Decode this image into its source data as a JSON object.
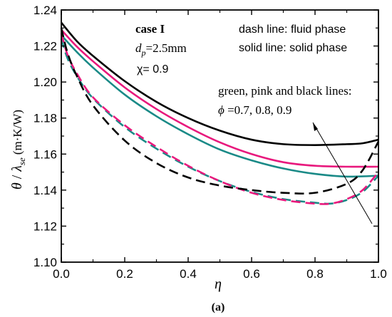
{
  "chart_data": {
    "type": "line",
    "ylabel_theta": "θ",
    "ylabel_slash": " / ",
    "ylabel_lambda": "λ",
    "ylabel_sub": "se",
    "ylabel_unit": "(m·K/W)",
    "xlabel": "η",
    "caption": "(a)",
    "xlim": [
      0.0,
      1.0
    ],
    "ylim": [
      1.1,
      1.24
    ],
    "x_ticks": [
      "0.0",
      "0.2",
      "0.4",
      "0.6",
      "0.8",
      "1.0"
    ],
    "x_tick_values": [
      0.0,
      0.2,
      0.4,
      0.6,
      0.8,
      1.0
    ],
    "y_ticks": [
      "1.10",
      "1.12",
      "1.14",
      "1.16",
      "1.18",
      "1.20",
      "1.22",
      "1.24"
    ],
    "y_tick_values": [
      1.1,
      1.12,
      1.14,
      1.16,
      1.18,
      1.2,
      1.22,
      1.24
    ],
    "annotations": {
      "case_label": "case I",
      "dp_symbol": "d",
      "dp_sub": "p",
      "dp_value": "=2.5mm",
      "chi": "χ= 0.9",
      "dash_note": "dash line: fluid phase",
      "solid_note": "solid line: solid phase",
      "lines_note": "green, pink and black lines:",
      "phi_symbol": "ϕ",
      "phi_values": " =0.7, 0.8, 0.9"
    },
    "colors": {
      "green": "#1a8a87",
      "pink": "#e8197d",
      "black": "#000000"
    },
    "series": [
      {
        "color": "green",
        "style": "solid",
        "x": [
          0,
          0.05,
          0.1,
          0.2,
          0.3,
          0.4,
          0.5,
          0.6,
          0.7,
          0.8,
          0.9,
          1.0
        ],
        "y": [
          1.226,
          1.2165,
          1.208,
          1.193,
          1.181,
          1.171,
          1.1625,
          1.1565,
          1.152,
          1.149,
          1.1475,
          1.148
        ]
      },
      {
        "color": "pink",
        "style": "solid",
        "x": [
          0,
          0.05,
          0.1,
          0.2,
          0.3,
          0.4,
          0.5,
          0.6,
          0.7,
          0.8,
          0.9,
          1.0
        ],
        "y": [
          1.229,
          1.2195,
          1.2115,
          1.197,
          1.185,
          1.175,
          1.1665,
          1.16,
          1.1555,
          1.1535,
          1.153,
          1.153
        ]
      },
      {
        "color": "black",
        "style": "solid",
        "x": [
          0,
          0.05,
          0.1,
          0.2,
          0.3,
          0.4,
          0.5,
          0.6,
          0.7,
          0.8,
          0.9,
          0.95,
          1.0
        ],
        "y": [
          1.233,
          1.2225,
          1.2145,
          1.2005,
          1.189,
          1.18,
          1.173,
          1.168,
          1.1655,
          1.165,
          1.1655,
          1.166,
          1.168
        ]
      },
      {
        "color": "green",
        "style": "dash",
        "x": [
          0,
          0.02,
          0.05,
          0.1,
          0.2,
          0.3,
          0.4,
          0.5,
          0.6,
          0.7,
          0.8,
          0.85,
          0.9,
          0.95,
          1.0
        ],
        "y": [
          1.224,
          1.213,
          1.203,
          1.191,
          1.175,
          1.163,
          1.153,
          1.145,
          1.139,
          1.135,
          1.133,
          1.1325,
          1.1345,
          1.139,
          1.148
        ]
      },
      {
        "color": "pink",
        "style": "dash",
        "x": [
          0,
          0.02,
          0.05,
          0.1,
          0.2,
          0.3,
          0.4,
          0.5,
          0.6,
          0.7,
          0.8,
          0.85,
          0.9,
          0.95,
          1.0
        ],
        "y": [
          1.227,
          1.215,
          1.2045,
          1.1915,
          1.176,
          1.164,
          1.1535,
          1.145,
          1.1385,
          1.1345,
          1.1325,
          1.1325,
          1.135,
          1.14,
          1.15
        ]
      },
      {
        "color": "black",
        "style": "dash",
        "x": [
          0,
          0.02,
          0.05,
          0.1,
          0.2,
          0.3,
          0.4,
          0.5,
          0.6,
          0.7,
          0.8,
          0.9,
          0.95,
          1.0
        ],
        "y": [
          1.23,
          1.216,
          1.203,
          1.187,
          1.1675,
          1.155,
          1.147,
          1.1425,
          1.14,
          1.1385,
          1.1385,
          1.1435,
          1.151,
          1.167
        ]
      }
    ]
  }
}
